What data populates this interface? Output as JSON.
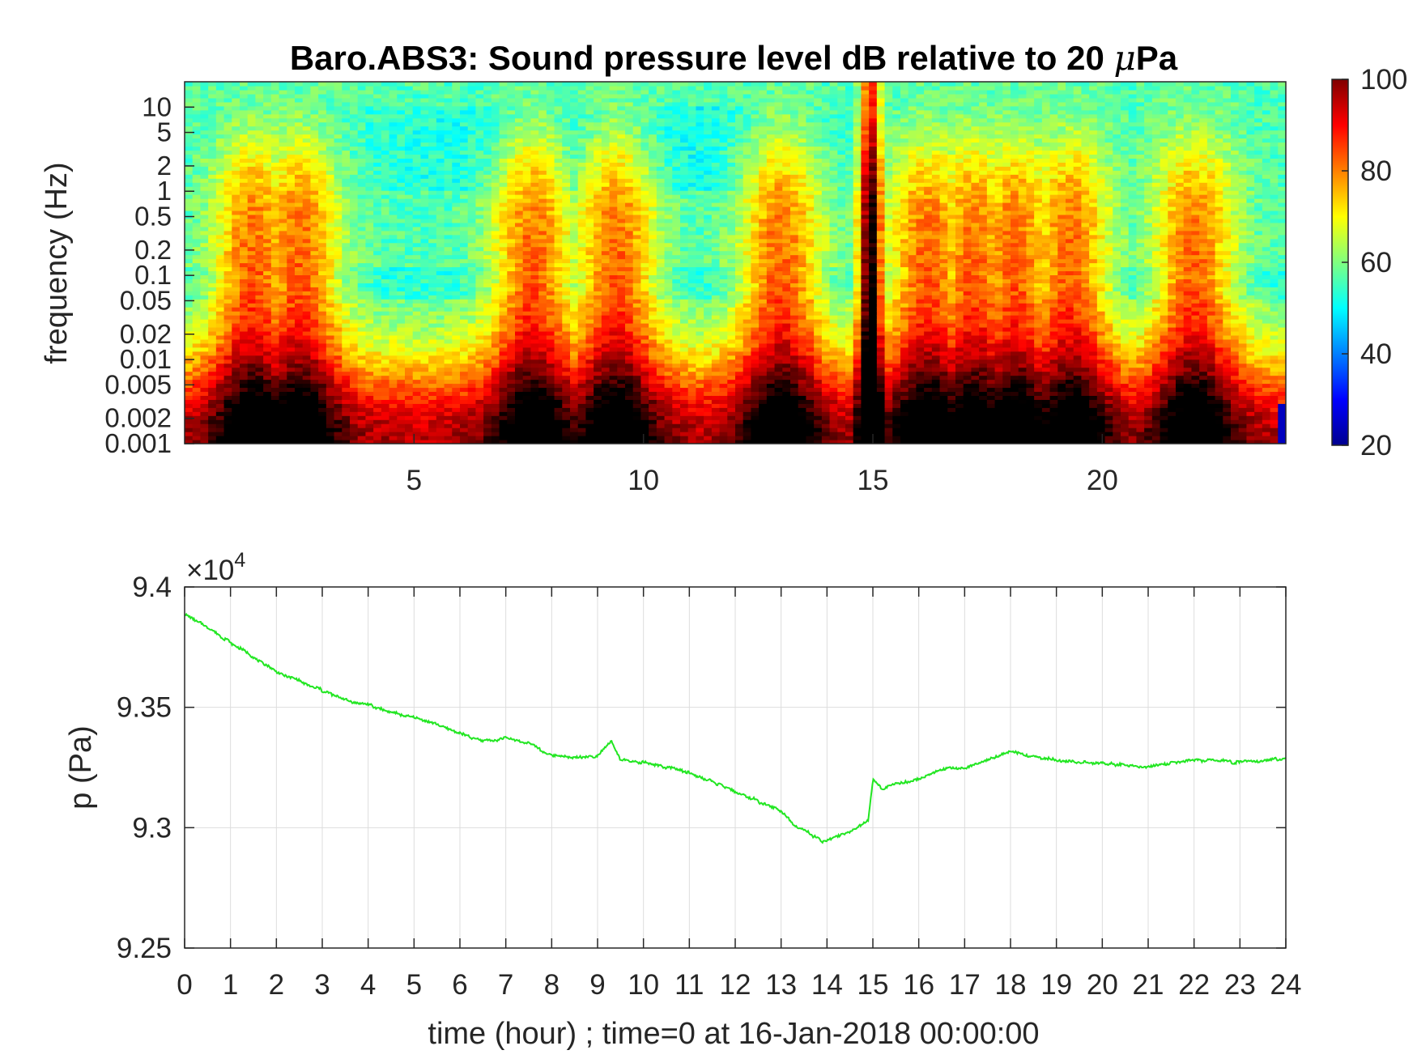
{
  "chart_data": [
    {
      "type": "heatmap",
      "title_prefix": "Baro.ABS3: Sound pressure level dB relative to 20 ",
      "title_mu": "μ",
      "title_suffix": "Pa",
      "xlabel": "",
      "ylabel": "frequency (Hz)",
      "x_ticks": [
        "5",
        "10",
        "15",
        "20"
      ],
      "x_tick_values": [
        5,
        10,
        15,
        20
      ],
      "xlim": [
        0,
        24
      ],
      "y_scale": "log",
      "y_ticks": [
        "0.001",
        "0.002",
        "0.005",
        "0.01",
        "0.02",
        "0.05",
        "0.1",
        "0.2",
        "0.5",
        "1",
        "2",
        "5",
        "10"
      ],
      "y_tick_values": [
        0.001,
        0.002,
        0.005,
        0.01,
        0.02,
        0.05,
        0.1,
        0.2,
        0.5,
        1,
        2,
        5,
        10
      ],
      "ylim": [
        0.001,
        20
      ],
      "colormap": "jet",
      "colorbar_ticks": [
        "20",
        "40",
        "60",
        "80",
        "100"
      ],
      "colorbar_tick_values": [
        20,
        40,
        60,
        80,
        100
      ],
      "clim": [
        20,
        100
      ],
      "high_level_events_hour": [
        1.5,
        2.5,
        7.6,
        9.4,
        13.0,
        14.95,
        16.2,
        17.2,
        18.1,
        19.3,
        22.0
      ],
      "dominant_event_hour": 14.95
    },
    {
      "type": "line",
      "title": "",
      "ylabel": "p (Pa)",
      "xlabel": "time (hour) ; time=0 at 16-Jan-2018 00:00:00",
      "exponent_label": "×10",
      "exponent_power": "4",
      "x_ticks": [
        "0",
        "1",
        "2",
        "3",
        "4",
        "5",
        "6",
        "7",
        "8",
        "9",
        "10",
        "11",
        "12",
        "13",
        "14",
        "15",
        "16",
        "17",
        "18",
        "19",
        "20",
        "21",
        "22",
        "23",
        "24"
      ],
      "y_ticks": [
        "9.25",
        "9.3",
        "9.35",
        "9.4"
      ],
      "y_tick_values": [
        92500,
        93000,
        93500,
        94000
      ],
      "xlim": [
        0,
        24
      ],
      "ylim": [
        92500,
        94000
      ],
      "grid": true,
      "line_color": "#22e622",
      "series": [
        {
          "x": [
            0,
            0.5,
            1,
            1.5,
            2,
            2.5,
            3,
            3.5,
            4,
            4.5,
            5,
            5.5,
            6,
            6.5,
            7,
            7.5,
            8,
            8.5,
            9,
            9.3,
            9.5,
            10,
            10.5,
            11,
            11.5,
            12,
            12.5,
            13,
            13.3,
            13.6,
            13.9,
            14.2,
            14.6,
            14.9,
            15.0,
            15.2,
            15.5,
            16,
            16.5,
            17,
            17.5,
            18,
            18.3,
            18.7,
            19,
            19.5,
            20,
            20.5,
            21,
            21.5,
            22,
            22.5,
            23,
            23.5,
            24
          ],
          "y": [
            93890,
            93830,
            93770,
            93710,
            93650,
            93610,
            93570,
            93530,
            93510,
            93480,
            93460,
            93430,
            93390,
            93360,
            93370,
            93350,
            93300,
            93290,
            93300,
            93360,
            93280,
            93270,
            93250,
            93230,
            93190,
            93150,
            93110,
            93070,
            93010,
            92980,
            92940,
            92960,
            92990,
            93030,
            93200,
            93160,
            93180,
            93200,
            93240,
            93250,
            93280,
            93320,
            93300,
            93290,
            93280,
            93270,
            93270,
            93260,
            93250,
            93270,
            93280,
            93280,
            93270,
            93280,
            93290
          ]
        }
      ]
    }
  ],
  "colors": {
    "line": "#22e622",
    "axes": "#262626",
    "grid": "#dddddd"
  }
}
